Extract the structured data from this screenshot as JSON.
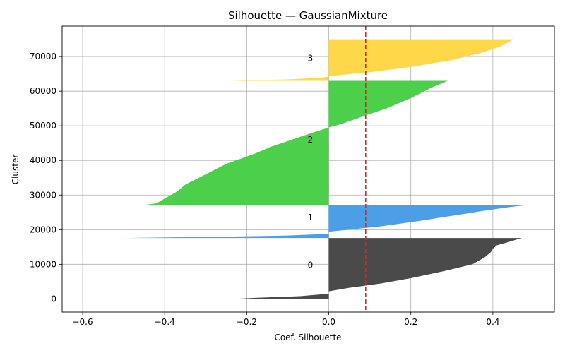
{
  "chart_data": {
    "type": "area",
    "title": "Silhouette — GaussianMixture",
    "xlabel": "Coef. Silhouette",
    "ylabel": "Cluster",
    "xlim": [
      -0.65,
      0.55
    ],
    "ylim": [
      -3800,
      78800
    ],
    "xticks": [
      -0.6,
      -0.4,
      -0.2,
      0.0,
      0.2,
      0.4
    ],
    "xtick_labels": [
      "−0.6",
      "−0.4",
      "−0.2",
      "0.0",
      "0.2",
      "0.4"
    ],
    "yticks": [
      0,
      10000,
      20000,
      30000,
      40000,
      50000,
      60000,
      70000
    ],
    "ytick_labels": [
      "0",
      "10000",
      "20000",
      "30000",
      "40000",
      "50000",
      "60000",
      "70000"
    ],
    "grid": true,
    "mean_silhouette": 0.09,
    "mean_line_color": "#d62728",
    "clusters": [
      {
        "label": "0",
        "label_y": 9800,
        "color": "#4a4a4a",
        "y_start": 0,
        "y_end": 17600,
        "profile": [
          [
            0,
            -0.23
          ],
          [
            300,
            -0.18
          ],
          [
            800,
            -0.07
          ],
          [
            1500,
            0.0
          ],
          [
            2200,
            0.0
          ],
          [
            3200,
            0.05
          ],
          [
            4500,
            0.13
          ],
          [
            6000,
            0.2
          ],
          [
            8000,
            0.28
          ],
          [
            10000,
            0.35
          ],
          [
            12000,
            0.38
          ],
          [
            13500,
            0.395
          ],
          [
            14500,
            0.4
          ],
          [
            15500,
            0.41
          ],
          [
            16500,
            0.44
          ],
          [
            17600,
            0.47
          ]
        ]
      },
      {
        "label": "1",
        "label_y": 23500,
        "color": "#4c9fe6",
        "y_start": 17600,
        "y_end": 27200,
        "profile": [
          [
            17600,
            -0.5
          ],
          [
            17900,
            -0.3
          ],
          [
            18300,
            -0.1
          ],
          [
            18800,
            0.0
          ],
          [
            19400,
            0.0
          ],
          [
            20000,
            0.05
          ],
          [
            21000,
            0.13
          ],
          [
            22500,
            0.22
          ],
          [
            24000,
            0.3
          ],
          [
            25500,
            0.38
          ],
          [
            26500,
            0.44
          ],
          [
            27200,
            0.49
          ]
        ]
      },
      {
        "label": "2",
        "label_y": 46000,
        "color": "#4cd04c",
        "y_start": 27200,
        "y_end": 63000,
        "profile": [
          [
            27200,
            -0.445
          ],
          [
            27600,
            -0.42
          ],
          [
            29000,
            -0.4
          ],
          [
            31000,
            -0.37
          ],
          [
            33000,
            -0.35
          ],
          [
            36000,
            -0.3
          ],
          [
            39000,
            -0.25
          ],
          [
            42000,
            -0.18
          ],
          [
            44000,
            -0.14
          ],
          [
            46000,
            -0.09
          ],
          [
            48000,
            -0.04
          ],
          [
            49500,
            0.0
          ],
          [
            50500,
            0.03
          ],
          [
            53000,
            0.09
          ],
          [
            55000,
            0.14
          ],
          [
            58000,
            0.2
          ],
          [
            61000,
            0.25
          ],
          [
            63000,
            0.29
          ]
        ]
      },
      {
        "label": "3",
        "label_y": 69500,
        "color": "#ffd84a",
        "y_start": 63000,
        "y_end": 75000,
        "profile": [
          [
            63000,
            -0.24
          ],
          [
            63400,
            -0.1
          ],
          [
            63800,
            -0.03
          ],
          [
            64200,
            0.0
          ],
          [
            64600,
            0.02
          ],
          [
            65500,
            0.1
          ],
          [
            67000,
            0.2
          ],
          [
            69000,
            0.3
          ],
          [
            71000,
            0.37
          ],
          [
            73000,
            0.42
          ],
          [
            74200,
            0.44
          ],
          [
            75000,
            0.45
          ]
        ]
      }
    ]
  }
}
